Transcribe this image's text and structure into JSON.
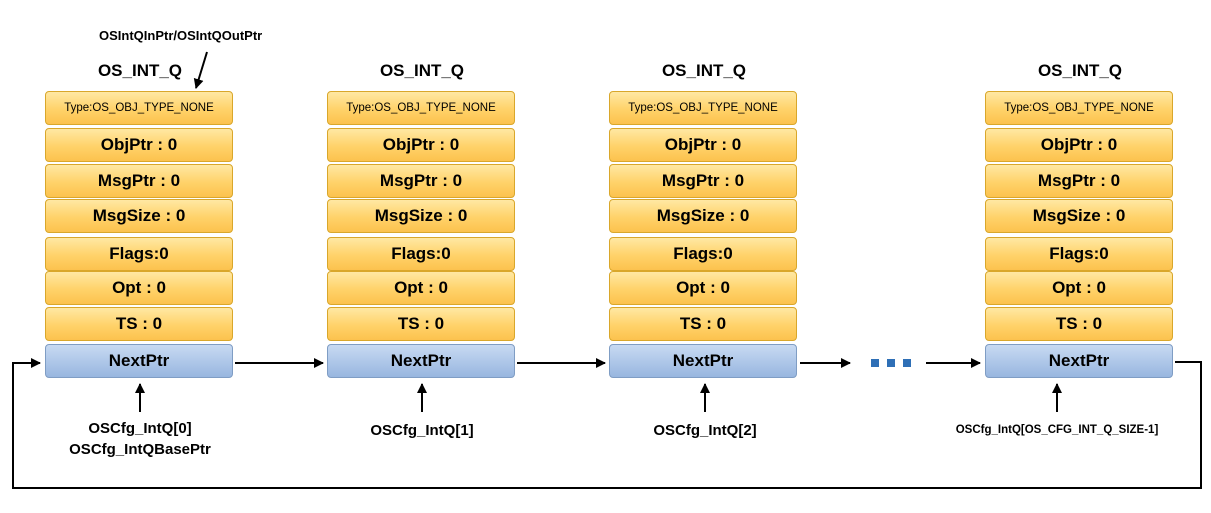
{
  "pointer_top_label": "OSIntQInPtr/OSIntQOutPtr",
  "ellipsis": "...",
  "structs": [
    {
      "title": "OS_INT_Q",
      "fields": {
        "type": "Type:OS_OBJ_TYPE_NONE",
        "objptr": "ObjPtr : 0",
        "msgptr": "MsgPtr : 0",
        "msgsize": "MsgSize : 0",
        "flags": "Flags:0",
        "opt": "Opt : 0",
        "ts": "TS : 0",
        "nextptr": "NextPtr"
      },
      "label_lines": [
        "OSCfg_IntQ[0]",
        "OSCfg_IntQBasePtr"
      ]
    },
    {
      "title": "OS_INT_Q",
      "fields": {
        "type": "Type:OS_OBJ_TYPE_NONE",
        "objptr": "ObjPtr : 0",
        "msgptr": "MsgPtr : 0",
        "msgsize": "MsgSize : 0",
        "flags": "Flags:0",
        "opt": "Opt : 0",
        "ts": "TS : 0",
        "nextptr": "NextPtr"
      },
      "label_lines": [
        "OSCfg_IntQ[1]"
      ]
    },
    {
      "title": "OS_INT_Q",
      "fields": {
        "type": "Type:OS_OBJ_TYPE_NONE",
        "objptr": "ObjPtr : 0",
        "msgptr": "MsgPtr : 0",
        "msgsize": "MsgSize : 0",
        "flags": "Flags:0",
        "opt": "Opt : 0",
        "ts": "TS : 0",
        "nextptr": "NextPtr"
      },
      "label_lines": [
        "OSCfg_IntQ[2]"
      ]
    },
    {
      "title": "OS_INT_Q",
      "fields": {
        "type": "Type:OS_OBJ_TYPE_NONE",
        "objptr": "ObjPtr : 0",
        "msgptr": "MsgPtr : 0",
        "msgsize": "MsgSize : 0",
        "flags": "Flags:0",
        "opt": "Opt : 0",
        "ts": "TS : 0",
        "nextptr": "NextPtr"
      },
      "label_lines": [
        "OSCfg_IntQ[OS_CFG_INT_Q_SIZE-1]"
      ]
    }
  ],
  "colors": {
    "field_fill": "#ffd269",
    "field_border": "#d9a72b",
    "next_fill": "#adc6e8",
    "next_border": "#7f9dc4",
    "ellipsis_color": "#2e6fb6",
    "arrow_color": "#000000"
  }
}
